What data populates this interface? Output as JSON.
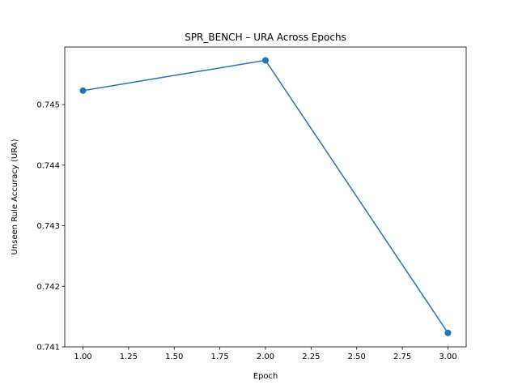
{
  "chart_data": {
    "type": "line",
    "title": "SPR_BENCH – URA Across Epochs",
    "xlabel": "Epoch",
    "ylabel": "Unseen Rule Accuracy (URA)",
    "xlim": [
      0.9,
      3.1
    ],
    "ylim": [
      0.741,
      0.74595
    ],
    "x_ticks": [
      1.0,
      1.25,
      1.5,
      1.75,
      2.0,
      2.25,
      2.5,
      2.75,
      3.0
    ],
    "x_tick_labels": [
      "1.00",
      "1.25",
      "1.50",
      "1.75",
      "2.00",
      "2.25",
      "2.50",
      "2.75",
      "3.00"
    ],
    "y_ticks": [
      0.741,
      0.742,
      0.743,
      0.744,
      0.745
    ],
    "y_tick_labels": [
      "0.741",
      "0.742",
      "0.743",
      "0.744",
      "0.745"
    ],
    "grid": false,
    "series": [
      {
        "x": [
          1,
          2,
          3
        ],
        "y": [
          0.74523,
          0.74573,
          0.74123
        ],
        "color": "#1f77b4",
        "marker": "circle"
      }
    ]
  }
}
